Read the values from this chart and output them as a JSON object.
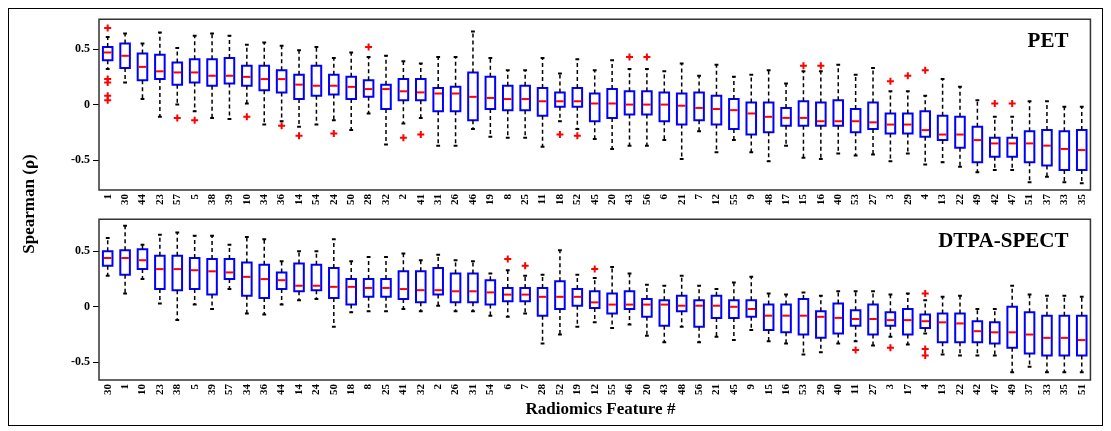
{
  "chart_data": [
    {
      "type": "box",
      "title": "PET",
      "ylabel": "Spearman (ρ)",
      "categories": [
        "1",
        "30",
        "44",
        "23",
        "57",
        "5",
        "38",
        "39",
        "10",
        "34",
        "36",
        "14",
        "54",
        "24",
        "50",
        "28",
        "32",
        "2",
        "41",
        "31",
        "26",
        "46",
        "19",
        "8",
        "25",
        "11",
        "18",
        "52",
        "45",
        "20",
        "43",
        "56",
        "6",
        "21",
        "7",
        "12",
        "55",
        "9",
        "48",
        "17",
        "15",
        "16",
        "40",
        "53",
        "27",
        "3",
        "29",
        "4",
        "13",
        "22",
        "49",
        "42",
        "47",
        "51",
        "37",
        "33",
        "35"
      ],
      "ylim": [
        -0.77,
        0.77
      ],
      "yticks": [
        -0.5,
        0,
        0.5
      ],
      "series": [
        {
          "color": "#0000ff",
          "boxes": [
            {
              "low": 0.32,
              "q1": 0.4,
              "median": 0.47,
              "q3": 0.52,
              "high": 0.61,
              "outliers": [
                0.69,
                0.23,
                0.2,
                0.08,
                0.04
              ]
            },
            {
              "low": 0.2,
              "q1": 0.33,
              "median": 0.44,
              "q3": 0.55,
              "high": 0.64
            },
            {
              "low": 0.05,
              "q1": 0.22,
              "median": 0.34,
              "q3": 0.46,
              "high": 0.55
            },
            {
              "low": -0.11,
              "q1": 0.23,
              "median": 0.3,
              "q3": 0.45,
              "high": 0.65
            },
            {
              "low": 0.0,
              "q1": 0.18,
              "median": 0.29,
              "q3": 0.38,
              "high": 0.51,
              "outliers": [
                -0.12
              ]
            },
            {
              "low": -0.06,
              "q1": 0.2,
              "median": 0.29,
              "q3": 0.41,
              "high": 0.62,
              "outliers": [
                -0.14
              ]
            },
            {
              "low": -0.12,
              "q1": 0.17,
              "median": 0.26,
              "q3": 0.41,
              "high": 0.64
            },
            {
              "low": -0.13,
              "q1": 0.19,
              "median": 0.26,
              "q3": 0.42,
              "high": 0.62
            },
            {
              "low": 0.01,
              "q1": 0.17,
              "median": 0.25,
              "q3": 0.35,
              "high": 0.54,
              "outliers": [
                -0.11
              ]
            },
            {
              "low": -0.18,
              "q1": 0.13,
              "median": 0.23,
              "q3": 0.35,
              "high": 0.56
            },
            {
              "low": -0.15,
              "q1": 0.11,
              "median": 0.23,
              "q3": 0.31,
              "high": 0.53,
              "outliers": [
                -0.19
              ]
            },
            {
              "low": -0.2,
              "q1": 0.05,
              "median": 0.18,
              "q3": 0.27,
              "high": 0.49,
              "outliers": [
                -0.28
              ]
            },
            {
              "low": -0.18,
              "q1": 0.08,
              "median": 0.17,
              "q3": 0.35,
              "high": 0.52
            },
            {
              "low": -0.14,
              "q1": 0.09,
              "median": 0.17,
              "q3": 0.27,
              "high": 0.42,
              "outliers": [
                -0.26
              ]
            },
            {
              "low": -0.23,
              "q1": 0.05,
              "median": 0.16,
              "q3": 0.25,
              "high": 0.47
            },
            {
              "low": -0.08,
              "q1": 0.07,
              "median": 0.14,
              "q3": 0.22,
              "high": 0.43,
              "outliers": [
                0.52
              ]
            },
            {
              "low": -0.36,
              "q1": -0.04,
              "median": 0.14,
              "q3": 0.18,
              "high": 0.44
            },
            {
              "low": -0.17,
              "q1": 0.04,
              "median": 0.12,
              "q3": 0.23,
              "high": 0.39,
              "outliers": [
                -0.3
              ]
            },
            {
              "low": -0.12,
              "q1": 0.04,
              "median": 0.11,
              "q3": 0.23,
              "high": 0.37,
              "outliers": [
                -0.27
              ]
            },
            {
              "low": -0.37,
              "q1": -0.06,
              "median": 0.1,
              "q3": 0.15,
              "high": 0.43
            },
            {
              "low": -0.37,
              "q1": -0.06,
              "median": 0.1,
              "q3": 0.16,
              "high": 0.43
            },
            {
              "low": -0.22,
              "q1": -0.14,
              "median": 0.07,
              "q3": 0.29,
              "high": 0.66
            },
            {
              "low": -0.29,
              "q1": -0.04,
              "median": 0.06,
              "q3": 0.25,
              "high": 0.42
            },
            {
              "low": -0.3,
              "q1": -0.05,
              "median": 0.05,
              "q3": 0.17,
              "high": 0.31
            },
            {
              "low": -0.3,
              "q1": -0.05,
              "median": 0.05,
              "q3": 0.17,
              "high": 0.31
            },
            {
              "low": -0.38,
              "q1": -0.1,
              "median": 0.03,
              "q3": 0.15,
              "high": 0.42
            },
            {
              "low": -0.15,
              "q1": -0.02,
              "median": 0.03,
              "q3": 0.11,
              "high": 0.28,
              "outliers": [
                -0.27
              ]
            },
            {
              "low": -0.22,
              "q1": -0.02,
              "median": 0.03,
              "q3": 0.15,
              "high": 0.41,
              "outliers": [
                -0.28
              ]
            },
            {
              "low": -0.31,
              "q1": -0.15,
              "median": 0.01,
              "q3": 0.1,
              "high": 0.31
            },
            {
              "low": -0.4,
              "q1": -0.12,
              "median": 0.01,
              "q3": 0.14,
              "high": 0.4
            },
            {
              "low": -0.37,
              "q1": -0.09,
              "median": 0.0,
              "q3": 0.12,
              "high": 0.32,
              "outliers": [
                0.43
              ]
            },
            {
              "low": -0.37,
              "q1": -0.09,
              "median": 0.0,
              "q3": 0.12,
              "high": 0.32,
              "outliers": [
                0.43
              ]
            },
            {
              "low": -0.32,
              "q1": -0.15,
              "median": 0.0,
              "q3": 0.11,
              "high": 0.3
            },
            {
              "low": -0.49,
              "q1": -0.18,
              "median": -0.01,
              "q3": 0.1,
              "high": 0.37
            },
            {
              "low": -0.24,
              "q1": -0.14,
              "median": -0.03,
              "q3": 0.11,
              "high": 0.26
            },
            {
              "low": -0.43,
              "q1": -0.18,
              "median": -0.04,
              "q3": 0.08,
              "high": 0.36
            },
            {
              "low": -0.32,
              "q1": -0.22,
              "median": -0.05,
              "q3": 0.05,
              "high": 0.25
            },
            {
              "low": -0.43,
              "q1": -0.27,
              "median": -0.08,
              "q3": 0.02,
              "high": 0.27
            },
            {
              "low": -0.51,
              "q1": -0.25,
              "median": -0.11,
              "q3": 0.02,
              "high": 0.31
            },
            {
              "low": -0.37,
              "q1": -0.19,
              "median": -0.12,
              "q3": -0.03,
              "high": 0.19
            },
            {
              "low": -0.48,
              "q1": -0.19,
              "median": -0.12,
              "q3": 0.03,
              "high": 0.3,
              "outliers": [
                0.35
              ]
            },
            {
              "low": -0.49,
              "q1": -0.19,
              "median": -0.15,
              "q3": 0.02,
              "high": 0.3,
              "outliers": [
                0.35
              ]
            },
            {
              "low": -0.44,
              "q1": -0.19,
              "median": -0.15,
              "q3": 0.04,
              "high": 0.36
            },
            {
              "low": -0.46,
              "q1": -0.25,
              "median": -0.15,
              "q3": -0.04,
              "high": 0.27
            },
            {
              "low": -0.45,
              "q1": -0.22,
              "median": -0.16,
              "q3": 0.02,
              "high": 0.33
            },
            {
              "low": -0.51,
              "q1": -0.26,
              "median": -0.18,
              "q3": -0.08,
              "high": 0.12,
              "outliers": [
                0.21
              ]
            },
            {
              "low": -0.44,
              "q1": -0.26,
              "median": -0.18,
              "q3": -0.08,
              "high": 0.12,
              "outliers": [
                0.26
              ]
            },
            {
              "low": -0.54,
              "q1": -0.29,
              "median": -0.23,
              "q3": -0.06,
              "high": 0.08,
              "outliers": [
                0.31
              ]
            },
            {
              "low": -0.52,
              "q1": -0.32,
              "median": -0.27,
              "q3": -0.1,
              "high": 0.23
            },
            {
              "low": -0.56,
              "q1": -0.39,
              "median": -0.27,
              "q3": -0.11,
              "high": 0.16
            },
            {
              "low": -0.61,
              "q1": -0.52,
              "median": -0.32,
              "q3": -0.2,
              "high": 0.04
            },
            {
              "low": -0.59,
              "q1": -0.47,
              "median": -0.35,
              "q3": -0.3,
              "high": -0.11,
              "outliers": [
                0.01
              ]
            },
            {
              "low": -0.59,
              "q1": -0.47,
              "median": -0.35,
              "q3": -0.3,
              "high": -0.11,
              "outliers": [
                0.01
              ]
            },
            {
              "low": -0.7,
              "q1": -0.52,
              "median": -0.35,
              "q3": -0.24,
              "high": 0.03
            },
            {
              "low": -0.65,
              "q1": -0.55,
              "median": -0.37,
              "q3": -0.23,
              "high": 0.03
            },
            {
              "low": -0.7,
              "q1": -0.59,
              "median": -0.4,
              "q3": -0.24,
              "high": -0.02
            },
            {
              "low": -0.71,
              "q1": -0.59,
              "median": -0.41,
              "q3": -0.23,
              "high": -0.02
            }
          ]
        }
      ]
    },
    {
      "type": "box",
      "title": "DTPA-SPECT",
      "xlabel": "Radiomics Feature #",
      "categories": [
        "30",
        "1",
        "10",
        "23",
        "38",
        "5",
        "39",
        "57",
        "34",
        "36",
        "44",
        "14",
        "24",
        "50",
        "18",
        "8",
        "25",
        "41",
        "32",
        "2",
        "26",
        "31",
        "54",
        "6",
        "7",
        "28",
        "52",
        "19",
        "12",
        "55",
        "46",
        "20",
        "43",
        "48",
        "56",
        "21",
        "45",
        "9",
        "15",
        "16",
        "53",
        "29",
        "40",
        "11",
        "27",
        "3",
        "17",
        "4",
        "13",
        "22",
        "42",
        "47",
        "49",
        "37",
        "33",
        "35",
        "51"
      ],
      "ylim": [
        -0.66,
        0.79
      ],
      "yticks": [
        -0.5,
        0,
        0.5
      ],
      "series": [
        {
          "color": "#0000ff",
          "boxes": [
            {
              "low": 0.28,
              "q1": 0.37,
              "median": 0.44,
              "q3": 0.5,
              "high": 0.62
            },
            {
              "low": 0.12,
              "q1": 0.29,
              "median": 0.44,
              "q3": 0.51,
              "high": 0.73
            },
            {
              "low": 0.25,
              "q1": 0.34,
              "median": 0.42,
              "q3": 0.52,
              "high": 0.56
            },
            {
              "low": 0.03,
              "q1": 0.16,
              "median": 0.34,
              "q3": 0.46,
              "high": 0.65
            },
            {
              "low": -0.12,
              "q1": 0.15,
              "median": 0.34,
              "q3": 0.46,
              "high": 0.67
            },
            {
              "low": 0.02,
              "q1": 0.16,
              "median": 0.33,
              "q3": 0.44,
              "high": 0.64
            },
            {
              "low": -0.02,
              "q1": 0.11,
              "median": 0.32,
              "q3": 0.43,
              "high": 0.64
            },
            {
              "low": 0.16,
              "q1": 0.25,
              "median": 0.31,
              "q3": 0.43,
              "high": 0.56
            },
            {
              "low": -0.06,
              "q1": 0.1,
              "median": 0.27,
              "q3": 0.4,
              "high": 0.63
            },
            {
              "low": -0.07,
              "q1": 0.08,
              "median": 0.25,
              "q3": 0.38,
              "high": 0.61
            },
            {
              "low": 0.02,
              "q1": 0.16,
              "median": 0.24,
              "q3": 0.31,
              "high": 0.41
            },
            {
              "low": 0.06,
              "q1": 0.14,
              "median": 0.19,
              "q3": 0.39,
              "high": 0.5
            },
            {
              "low": 0.07,
              "q1": 0.15,
              "median": 0.19,
              "q3": 0.38,
              "high": 0.5
            },
            {
              "low": -0.18,
              "q1": 0.08,
              "median": 0.18,
              "q3": 0.35,
              "high": 0.61
            },
            {
              "low": -0.05,
              "q1": 0.02,
              "median": 0.18,
              "q3": 0.25,
              "high": 0.41
            },
            {
              "low": -0.04,
              "q1": 0.09,
              "median": 0.17,
              "q3": 0.25,
              "high": 0.45
            },
            {
              "low": -0.04,
              "q1": 0.09,
              "median": 0.17,
              "q3": 0.25,
              "high": 0.45
            },
            {
              "low": -0.02,
              "q1": 0.07,
              "median": 0.16,
              "q3": 0.32,
              "high": 0.48
            },
            {
              "low": -0.04,
              "q1": 0.04,
              "median": 0.15,
              "q3": 0.32,
              "high": 0.42
            },
            {
              "low": 0.01,
              "q1": 0.11,
              "median": 0.15,
              "q3": 0.35,
              "high": 0.47
            },
            {
              "low": -0.04,
              "q1": 0.04,
              "median": 0.14,
              "q3": 0.3,
              "high": 0.42
            },
            {
              "low": -0.04,
              "q1": 0.04,
              "median": 0.14,
              "q3": 0.3,
              "high": 0.41
            },
            {
              "low": -0.08,
              "q1": 0.02,
              "median": 0.13,
              "q3": 0.24,
              "high": 0.3
            },
            {
              "low": -0.09,
              "q1": 0.05,
              "median": 0.11,
              "q3": 0.17,
              "high": 0.33,
              "outliers": [
                0.43
              ]
            },
            {
              "low": -0.06,
              "q1": 0.05,
              "median": 0.11,
              "q3": 0.17,
              "high": 0.28,
              "outliers": [
                0.37
              ]
            },
            {
              "low": -0.33,
              "q1": -0.08,
              "median": 0.09,
              "q3": 0.17,
              "high": 0.29
            },
            {
              "low": -0.25,
              "q1": -0.02,
              "median": 0.09,
              "q3": 0.23,
              "high": 0.51
            },
            {
              "low": -0.18,
              "q1": 0.01,
              "median": 0.09,
              "q3": 0.16,
              "high": 0.29
            },
            {
              "low": -0.14,
              "q1": -0.01,
              "median": 0.04,
              "q3": 0.14,
              "high": 0.26,
              "outliers": [
                0.34
              ]
            },
            {
              "low": -0.19,
              "q1": -0.06,
              "median": 0.02,
              "q3": 0.12,
              "high": 0.36
            },
            {
              "low": -0.16,
              "q1": -0.02,
              "median": 0.02,
              "q3": 0.14,
              "high": 0.3
            },
            {
              "low": -0.26,
              "q1": -0.09,
              "median": 0.02,
              "q3": 0.07,
              "high": 0.2
            },
            {
              "low": -0.32,
              "q1": -0.17,
              "median": 0.02,
              "q3": 0.06,
              "high": 0.19
            },
            {
              "low": -0.18,
              "q1": -0.04,
              "median": 0.01,
              "q3": 0.1,
              "high": 0.28
            },
            {
              "low": -0.32,
              "q1": -0.18,
              "median": 0.01,
              "q3": 0.06,
              "high": 0.19
            },
            {
              "low": -0.27,
              "q1": -0.1,
              "median": 0.01,
              "q3": 0.1,
              "high": 0.16
            },
            {
              "low": -0.3,
              "q1": -0.1,
              "median": 0.0,
              "q3": 0.06,
              "high": 0.22
            },
            {
              "low": -0.21,
              "q1": -0.09,
              "median": -0.02,
              "q3": 0.06,
              "high": 0.27
            },
            {
              "low": -0.31,
              "q1": -0.21,
              "median": -0.08,
              "q3": 0.02,
              "high": 0.12
            },
            {
              "low": -0.33,
              "q1": -0.23,
              "median": -0.08,
              "q3": 0.02,
              "high": 0.11
            },
            {
              "low": -0.43,
              "q1": -0.25,
              "median": -0.08,
              "q3": 0.07,
              "high": 0.13
            },
            {
              "low": -0.41,
              "q1": -0.28,
              "median": -0.09,
              "q3": -0.04,
              "high": 0.1
            },
            {
              "low": -0.33,
              "q1": -0.24,
              "median": -0.1,
              "q3": 0.03,
              "high": 0.14
            },
            {
              "low": -0.31,
              "q1": -0.17,
              "median": -0.11,
              "q3": -0.03,
              "high": 0.14,
              "outliers": [
                -0.39
              ]
            },
            {
              "low": -0.35,
              "q1": -0.25,
              "median": -0.11,
              "q3": 0.02,
              "high": 0.14
            },
            {
              "low": -0.27,
              "q1": -0.17,
              "median": -0.12,
              "q3": -0.05,
              "high": 0.11,
              "outliers": [
                -0.37
              ]
            },
            {
              "low": -0.34,
              "q1": -0.25,
              "median": -0.12,
              "q3": -0.02,
              "high": 0.12
            },
            {
              "low": -0.24,
              "q1": -0.19,
              "median": -0.13,
              "q3": -0.07,
              "high": 0.06,
              "outliers": [
                0.12,
                -0.38,
                -0.44
              ]
            },
            {
              "low": -0.43,
              "q1": -0.32,
              "median": -0.14,
              "q3": -0.06,
              "high": 0.09
            },
            {
              "low": -0.44,
              "q1": -0.32,
              "median": -0.15,
              "q3": -0.06,
              "high": 0.1
            },
            {
              "low": -0.44,
              "q1": -0.32,
              "median": -0.22,
              "q3": -0.13,
              "high": -0.02
            },
            {
              "low": -0.44,
              "q1": -0.33,
              "median": -0.23,
              "q3": -0.14,
              "high": -0.02
            },
            {
              "low": -0.59,
              "q1": -0.37,
              "median": -0.23,
              "q3": 0.0,
              "high": 0.19
            },
            {
              "low": -0.54,
              "q1": -0.42,
              "median": -0.25,
              "q3": -0.05,
              "high": 0.11
            },
            {
              "low": -0.59,
              "q1": -0.44,
              "median": -0.28,
              "q3": -0.08,
              "high": 0.1
            },
            {
              "low": -0.59,
              "q1": -0.44,
              "median": -0.28,
              "q3": -0.08,
              "high": 0.1
            },
            {
              "low": -0.59,
              "q1": -0.44,
              "median": -0.3,
              "q3": -0.08,
              "high": 0.09
            }
          ]
        }
      ]
    }
  ]
}
